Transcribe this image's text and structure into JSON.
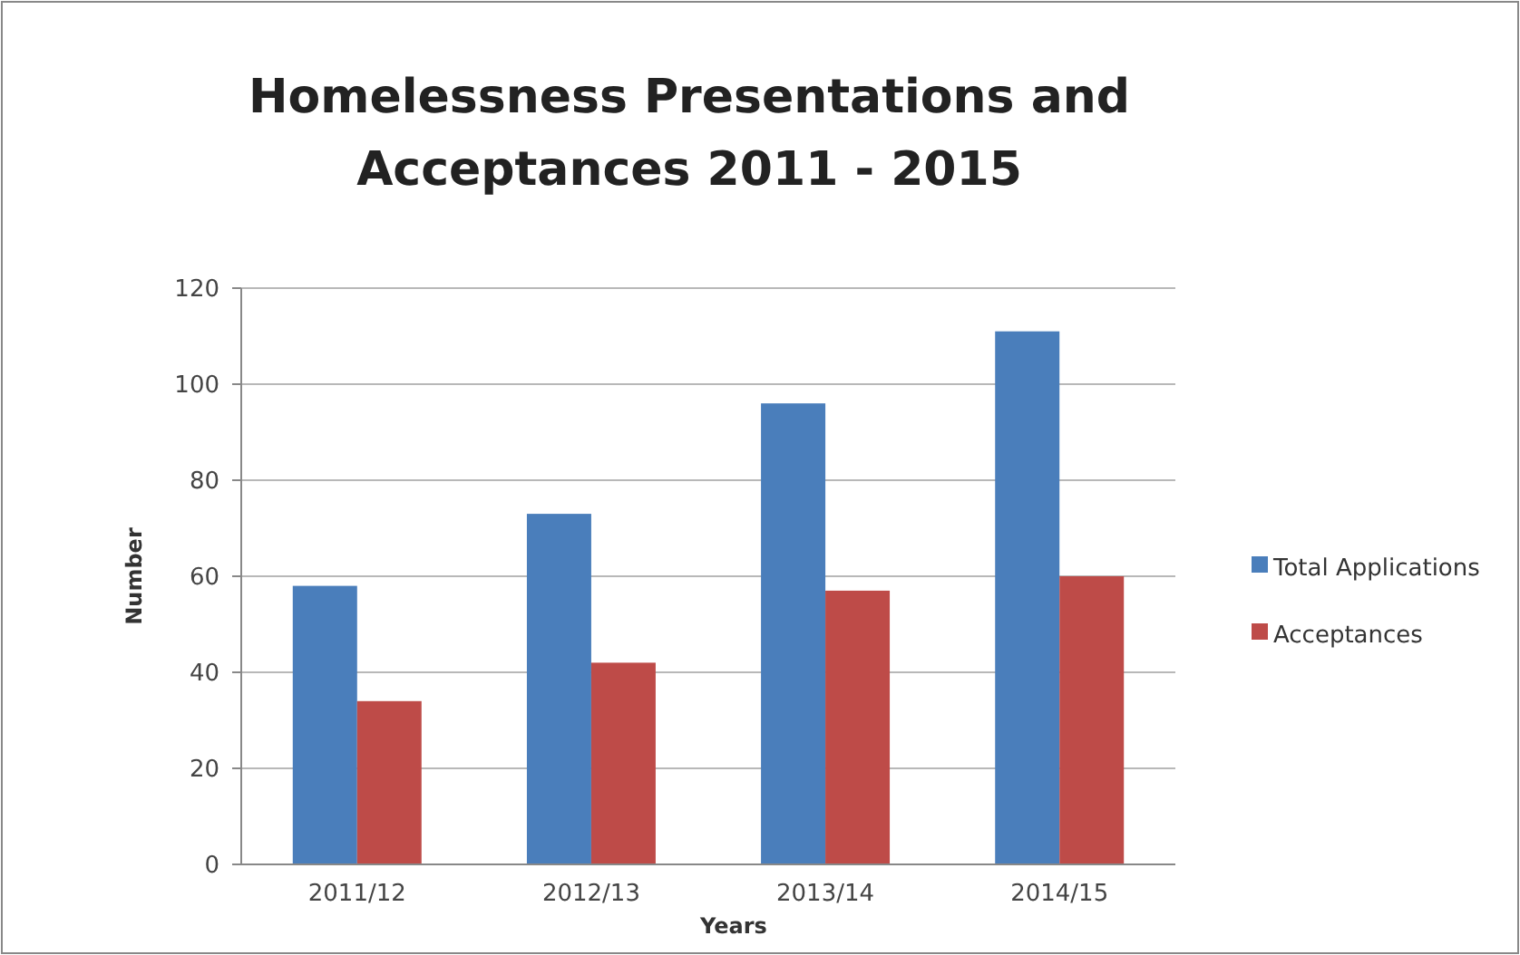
{
  "chart_data": {
    "type": "bar",
    "title": "Homelessness Presentations and Acceptances 2011 - 2015",
    "xlabel": "Years",
    "ylabel": "Number",
    "categories": [
      "2011/12",
      "2012/13",
      "2013/14",
      "2014/15"
    ],
    "series": [
      {
        "name": "Total Applications",
        "color": "#4a7ebb",
        "values": [
          58,
          73,
          96,
          111
        ]
      },
      {
        "name": "Acceptances",
        "color": "#be4b48",
        "values": [
          34,
          42,
          57,
          60
        ]
      }
    ],
    "ylim": [
      0,
      120
    ],
    "yticks": [
      0,
      20,
      40,
      60,
      80,
      100,
      120
    ],
    "grid": "y",
    "legend": "right"
  }
}
